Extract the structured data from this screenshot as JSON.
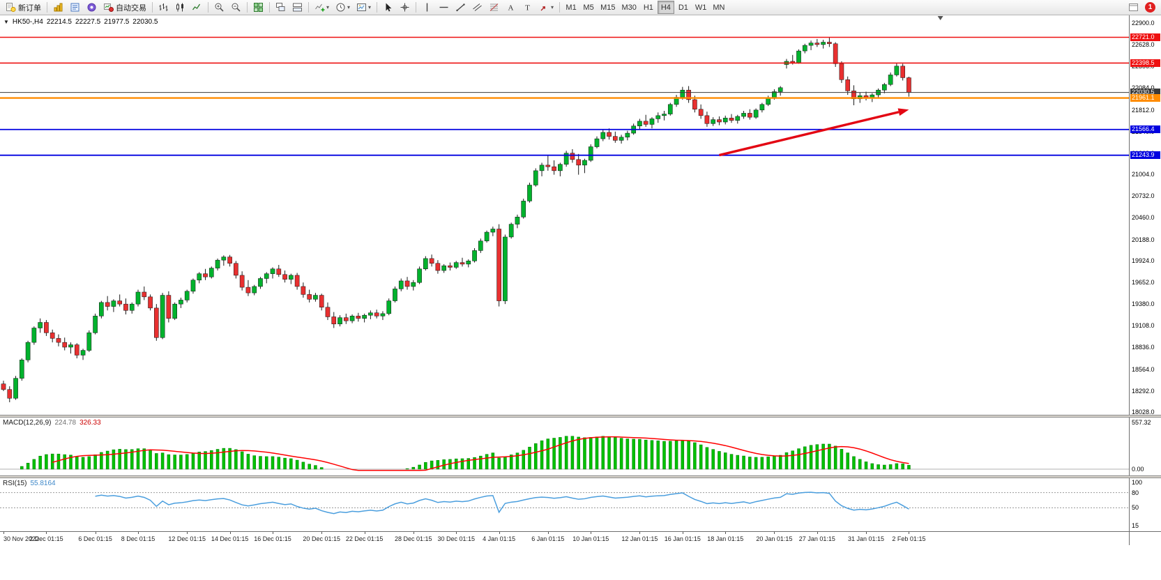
{
  "toolbar": {
    "new_order": "新订单",
    "autotrading": "自动交易",
    "timeframes": [
      "M1",
      "M5",
      "M15",
      "M30",
      "H1",
      "H4",
      "D1",
      "W1",
      "MN"
    ],
    "active_timeframe": "H4",
    "notification_count": "1"
  },
  "chart_header": {
    "symbol_period": "HK50-,H4",
    "open": "22214.5",
    "high": "22227.5",
    "low": "21977.5",
    "close": "22030.5"
  },
  "indicators": {
    "macd": {
      "label": "MACD(12,26,9)",
      "value1": "224.78",
      "value2": "326.33",
      "axis": [
        "557.32",
        "0.00"
      ],
      "params": [
        12,
        26,
        9
      ]
    },
    "rsi": {
      "label": "RSI(15)",
      "value": "55.8164",
      "axis": [
        "100",
        "80",
        "50",
        "15"
      ],
      "levels": [
        80,
        50
      ],
      "period": 15
    }
  },
  "colors": {
    "bull": "#00b22d",
    "bear": "#e83030",
    "wick": "#1a1a1a",
    "macd_bar": "#00c000",
    "macd_bar_edge": "#007700",
    "macd_signal": "#ff0000",
    "rsi_line": "#4a9ede",
    "resistance": "#ee1111",
    "support": "#0000e0",
    "pivot": "#ff8c00",
    "current": "#3a3a3a",
    "arrow": "#e30613"
  },
  "chart_data": {
    "type": "candlestick",
    "symbol": "HK50-",
    "timeframe": "H4",
    "price_axis": {
      "min": 18028,
      "max": 22900,
      "labels": [
        "22900.0",
        "22628.0",
        "22356.0",
        "22084.0",
        "21812.0",
        "21540.0",
        "21268.0",
        "21004.0",
        "20732.0",
        "20460.0",
        "20188.0",
        "19924.0",
        "19652.0",
        "19380.0",
        "19108.0",
        "18836.0",
        "18564.0",
        "18292.0",
        "18028.0"
      ]
    },
    "hlines": [
      {
        "price": 22721.0,
        "label": "22721.0",
        "color": "#ee1111",
        "width": 1.6,
        "type": "resistance"
      },
      {
        "price": 22398.5,
        "label": "22398.5",
        "color": "#ee1111",
        "width": 1.6,
        "type": "resistance"
      },
      {
        "price": 22030.5,
        "label": "22030.5",
        "color": "#3a3a3a",
        "width": 1.0,
        "type": "current-price"
      },
      {
        "price": 21961.1,
        "label": "21961.1",
        "color": "#ff8c00",
        "width": 2.4,
        "type": "pivot"
      },
      {
        "price": 21566.4,
        "label": "21566.4",
        "color": "#0000e0",
        "width": 1.8,
        "type": "support"
      },
      {
        "price": 21243.9,
        "label": "21243.9",
        "color": "#0000e0",
        "width": 1.8,
        "type": "support"
      }
    ],
    "trend_arrow": {
      "from_index": 117,
      "from_price": 21245,
      "to_index": 148,
      "to_price": 21815,
      "color": "#e30613"
    },
    "time_labels": [
      {
        "i": 0,
        "t": "30 Nov 2022"
      },
      {
        "i": 7,
        "t": "2 Dec 01:15"
      },
      {
        "i": 15,
        "t": "6 Dec 01:15"
      },
      {
        "i": 22,
        "t": "8 Dec 01:15"
      },
      {
        "i": 30,
        "t": "12 Dec 01:15"
      },
      {
        "i": 37,
        "t": "14 Dec 01:15"
      },
      {
        "i": 44,
        "t": "16 Dec 01:15"
      },
      {
        "i": 52,
        "t": "20 Dec 01:15"
      },
      {
        "i": 59,
        "t": "22 Dec 01:15"
      },
      {
        "i": 67,
        "t": "28 Dec 01:15"
      },
      {
        "i": 74,
        "t": "30 Dec 01:15"
      },
      {
        "i": 81,
        "t": "4 Jan 01:15"
      },
      {
        "i": 89,
        "t": "6 Jan 01:15"
      },
      {
        "i": 96,
        "t": "10 Jan 01:15"
      },
      {
        "i": 104,
        "t": "12 Jan 01:15"
      },
      {
        "i": 111,
        "t": "16 Jan 01:15"
      },
      {
        "i": 118,
        "t": "18 Jan 01:15"
      },
      {
        "i": 126,
        "t": "20 Jan 01:15"
      },
      {
        "i": 133,
        "t": "27 Jan 01:15"
      },
      {
        "i": 141,
        "t": "31 Jan 01:15"
      },
      {
        "i": 148,
        "t": "2 Feb 01:15"
      }
    ],
    "candles": [
      [
        18380,
        18420,
        18290,
        18310
      ],
      [
        18310,
        18350,
        18150,
        18200
      ],
      [
        18200,
        18480,
        18180,
        18450
      ],
      [
        18450,
        18700,
        18420,
        18680
      ],
      [
        18680,
        18920,
        18650,
        18900
      ],
      [
        18900,
        19100,
        18870,
        19080
      ],
      [
        19080,
        19200,
        19020,
        19150
      ],
      [
        19150,
        19180,
        18980,
        19020
      ],
      [
        19020,
        19060,
        18900,
        18950
      ],
      [
        18950,
        19000,
        18850,
        18900
      ],
      [
        18900,
        18960,
        18800,
        18840
      ],
      [
        18840,
        18900,
        18760,
        18870
      ],
      [
        18870,
        18890,
        18700,
        18740
      ],
      [
        18740,
        18820,
        18680,
        18800
      ],
      [
        18800,
        19050,
        18780,
        19020
      ],
      [
        19020,
        19260,
        19000,
        19230
      ],
      [
        19230,
        19420,
        19200,
        19400
      ],
      [
        19400,
        19480,
        19300,
        19350
      ],
      [
        19350,
        19440,
        19280,
        19420
      ],
      [
        19420,
        19500,
        19350,
        19380
      ],
      [
        19380,
        19450,
        19250,
        19300
      ],
      [
        19300,
        19400,
        19260,
        19380
      ],
      [
        19380,
        19560,
        19350,
        19530
      ],
      [
        19530,
        19600,
        19430,
        19470
      ],
      [
        19470,
        19500,
        19300,
        19330
      ],
      [
        19330,
        19380,
        18920,
        18960
      ],
      [
        18960,
        19520,
        18940,
        19490
      ],
      [
        19490,
        19540,
        19150,
        19200
      ],
      [
        19200,
        19400,
        19180,
        19380
      ],
      [
        19380,
        19460,
        19330,
        19430
      ],
      [
        19430,
        19560,
        19400,
        19540
      ],
      [
        19540,
        19700,
        19510,
        19680
      ],
      [
        19680,
        19780,
        19640,
        19760
      ],
      [
        19760,
        19820,
        19680,
        19720
      ],
      [
        19720,
        19850,
        19700,
        19830
      ],
      [
        19830,
        19950,
        19800,
        19930
      ],
      [
        19930,
        19990,
        19860,
        19970
      ],
      [
        19970,
        19995,
        19850,
        19890
      ],
      [
        19890,
        19920,
        19700,
        19740
      ],
      [
        19740,
        19790,
        19550,
        19590
      ],
      [
        19590,
        19680,
        19480,
        19520
      ],
      [
        19520,
        19620,
        19490,
        19600
      ],
      [
        19600,
        19720,
        19570,
        19700
      ],
      [
        19700,
        19780,
        19640,
        19760
      ],
      [
        19760,
        19840,
        19700,
        19820
      ],
      [
        19820,
        19870,
        19720,
        19750
      ],
      [
        19750,
        19800,
        19650,
        19690
      ],
      [
        19690,
        19760,
        19630,
        19740
      ],
      [
        19740,
        19770,
        19560,
        19600
      ],
      [
        19600,
        19650,
        19460,
        19500
      ],
      [
        19500,
        19560,
        19400,
        19440
      ],
      [
        19440,
        19520,
        19410,
        19490
      ],
      [
        19490,
        19510,
        19300,
        19340
      ],
      [
        19340,
        19400,
        19180,
        19220
      ],
      [
        19220,
        19280,
        19080,
        19130
      ],
      [
        19130,
        19240,
        19100,
        19210
      ],
      [
        19210,
        19260,
        19130,
        19170
      ],
      [
        19170,
        19250,
        19140,
        19230
      ],
      [
        19230,
        19270,
        19160,
        19200
      ],
      [
        19200,
        19260,
        19150,
        19240
      ],
      [
        19240,
        19300,
        19190,
        19270
      ],
      [
        19270,
        19310,
        19200,
        19230
      ],
      [
        19230,
        19290,
        19180,
        19260
      ],
      [
        19260,
        19450,
        19240,
        19420
      ],
      [
        19420,
        19600,
        19400,
        19570
      ],
      [
        19570,
        19700,
        19540,
        19670
      ],
      [
        19670,
        19720,
        19560,
        19600
      ],
      [
        19600,
        19680,
        19550,
        19650
      ],
      [
        19650,
        19850,
        19630,
        19820
      ],
      [
        19820,
        19980,
        19800,
        19950
      ],
      [
        19950,
        20000,
        19850,
        19890
      ],
      [
        19890,
        19930,
        19760,
        19800
      ],
      [
        19800,
        19880,
        19770,
        19860
      ],
      [
        19860,
        19900,
        19800,
        19840
      ],
      [
        19840,
        19920,
        19820,
        19900
      ],
      [
        19900,
        19960,
        19850,
        19880
      ],
      [
        19880,
        19940,
        19840,
        19920
      ],
      [
        19920,
        20080,
        19900,
        20050
      ],
      [
        20050,
        20200,
        20020,
        20170
      ],
      [
        20170,
        20300,
        20150,
        20280
      ],
      [
        20280,
        20350,
        20230,
        20320
      ],
      [
        20320,
        20380,
        19350,
        19420
      ],
      [
        19420,
        20250,
        19380,
        20220
      ],
      [
        20220,
        20400,
        20200,
        20380
      ],
      [
        20380,
        20500,
        20330,
        20470
      ],
      [
        20470,
        20700,
        20450,
        20670
      ],
      [
        20670,
        20900,
        20650,
        20870
      ],
      [
        20870,
        21080,
        20850,
        21050
      ],
      [
        21050,
        21150,
        20980,
        21120
      ],
      [
        21120,
        21250,
        21050,
        21100
      ],
      [
        21100,
        21180,
        21000,
        21050
      ],
      [
        21050,
        21150,
        20980,
        21130
      ],
      [
        21130,
        21300,
        21100,
        21270
      ],
      [
        21270,
        21320,
        21150,
        21190
      ],
      [
        21190,
        21260,
        21000,
        21120
      ],
      [
        21120,
        21200,
        21020,
        21180
      ],
      [
        21180,
        21380,
        21160,
        21350
      ],
      [
        21350,
        21480,
        21330,
        21450
      ],
      [
        21450,
        21560,
        21420,
        21530
      ],
      [
        21530,
        21580,
        21440,
        21480
      ],
      [
        21480,
        21540,
        21400,
        21430
      ],
      [
        21430,
        21500,
        21390,
        21470
      ],
      [
        21470,
        21550,
        21430,
        21520
      ],
      [
        21520,
        21640,
        21500,
        21610
      ],
      [
        21610,
        21700,
        21560,
        21670
      ],
      [
        21670,
        21750,
        21600,
        21630
      ],
      [
        21630,
        21720,
        21580,
        21700
      ],
      [
        21700,
        21780,
        21650,
        21740
      ],
      [
        21740,
        21800,
        21680,
        21760
      ],
      [
        21760,
        21900,
        21740,
        21880
      ],
      [
        21880,
        22000,
        21850,
        21970
      ],
      [
        21970,
        22100,
        21940,
        22060
      ],
      [
        22060,
        22110,
        21900,
        21940
      ],
      [
        21940,
        21990,
        21780,
        21820
      ],
      [
        21820,
        21880,
        21700,
        21740
      ],
      [
        21740,
        21790,
        21600,
        21640
      ],
      [
        21640,
        21720,
        21610,
        21690
      ],
      [
        21690,
        21730,
        21620,
        21660
      ],
      [
        21660,
        21740,
        21630,
        21710
      ],
      [
        21710,
        21760,
        21650,
        21680
      ],
      [
        21680,
        21750,
        21640,
        21730
      ],
      [
        21730,
        21800,
        21700,
        21770
      ],
      [
        21770,
        21820,
        21690,
        21720
      ],
      [
        21720,
        21830,
        21700,
        21810
      ],
      [
        21810,
        21900,
        21780,
        21880
      ],
      [
        21880,
        21990,
        21860,
        21960
      ],
      [
        21960,
        22070,
        21940,
        22040
      ],
      [
        22040,
        22110,
        21990,
        22090
      ],
      [
        22380,
        22450,
        22330,
        22420
      ],
      [
        22420,
        22500,
        22380,
        22400
      ],
      [
        22400,
        22570,
        22390,
        22550
      ],
      [
        22550,
        22640,
        22520,
        22620
      ],
      [
        22620,
        22680,
        22560,
        22650
      ],
      [
        22650,
        22700,
        22600,
        22630
      ],
      [
        22630,
        22690,
        22580,
        22660
      ],
      [
        22660,
        22721,
        22600,
        22640
      ],
      [
        22640,
        22660,
        22350,
        22390
      ],
      [
        22390,
        22420,
        22150,
        22190
      ],
      [
        22190,
        22230,
        22000,
        22050
      ],
      [
        22050,
        22120,
        21870,
        21950
      ],
      [
        21950,
        22030,
        21900,
        21990
      ],
      [
        21990,
        22040,
        21930,
        21960
      ],
      [
        21960,
        22020,
        21910,
        22000
      ],
      [
        22000,
        22080,
        21960,
        22060
      ],
      [
        22060,
        22150,
        22020,
        22130
      ],
      [
        22130,
        22280,
        22110,
        22250
      ],
      [
        22250,
        22400,
        22230,
        22360
      ],
      [
        22360,
        22390,
        22180,
        22215
      ],
      [
        22214.5,
        22227.5,
        21977.5,
        22030.5
      ]
    ]
  }
}
